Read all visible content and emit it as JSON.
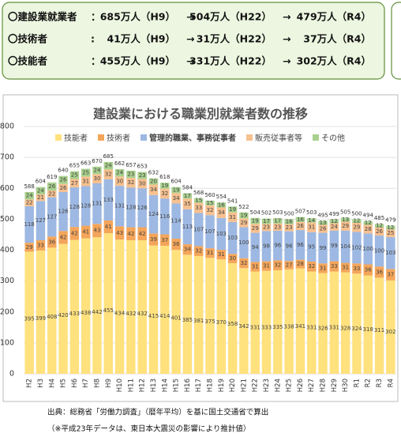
{
  "summary": {
    "rows": [
      [
        "〇建設業就業者",
        "：",
        "685万人（H9）",
        "→",
        "504万人（H22）",
        "→",
        "479万人（R4）"
      ],
      [
        "〇技術者",
        ":",
        "41万人（H9）",
        "→",
        "31万人（H22）",
        "→",
        "37万人（R4）"
      ],
      [
        "〇技能者",
        "：",
        "455万人（H9）",
        "→",
        "331万人（H22）",
        "→",
        "302万人（R4）"
      ]
    ]
  },
  "chart_data": {
    "type": "stacked-bar",
    "title": "建設業における職業別就業者数の推移",
    "categories": [
      "H2",
      "H3",
      "H4",
      "H5",
      "H6",
      "H7",
      "H8",
      "H9",
      "H10",
      "H11",
      "H12",
      "H13",
      "H14",
      "H15",
      "H16",
      "H17",
      "H18",
      "H19",
      "H20",
      "H21",
      "H22",
      "H23",
      "H24",
      "H25",
      "H26",
      "H27",
      "H28",
      "H29",
      "H30",
      "R1",
      "R2",
      "R3",
      "R4"
    ],
    "series": [
      {
        "name": "技能者",
        "color": "#ffe17d",
        "values": [
          395,
          399,
          408,
          420,
          433,
          438,
          442,
          455,
          434,
          432,
          432,
          415,
          414,
          401,
          385,
          381,
          375,
          370,
          358,
          342,
          331,
          333,
          335,
          338,
          341,
          331,
          326,
          331,
          328,
          324,
          318,
          311,
          302
        ]
      },
      {
        "name": "技術者",
        "color": "#f4a55a",
        "values": [
          29,
          33,
          36,
          42,
          42,
          41,
          43,
          41,
          43,
          42,
          42,
          39,
          37,
          36,
          34,
          32,
          31,
          31,
          30,
          32,
          31,
          31,
          32,
          27,
          28,
          32,
          31,
          33,
          31,
          33,
          36,
          36,
          37
        ]
      },
      {
        "name": "管理的職業、事務従事者",
        "color": "#9db8e2",
        "values": [
          118,
          127,
          127,
          126,
          128,
          128,
          131,
          133,
          131,
          128,
          126,
          124,
          116,
          114,
          113,
          107,
          107,
          103,
          103,
          100,
          94,
          98,
          96,
          96,
          96,
          95,
          99,
          99,
          104,
          102,
          100,
          100,
          103
        ]
      },
      {
        "name": "販売従事者等",
        "color": "#f6c08f",
        "values": [
          22,
          21,
          22,
          26,
          27,
          31,
          30,
          32,
          30,
          32,
          30,
          34,
          32,
          34,
          35,
          33,
          32,
          34,
          31,
          29,
          29,
          23,
          23,
          23,
          26,
          31,
          26,
          24,
          29,
          29,
          28,
          26,
          25
        ]
      },
      {
        "name": "その他",
        "color": "#a9d18e",
        "values": [
          24,
          24,
          26,
          26,
          25,
          25,
          24,
          24,
          24,
          23,
          23,
          20,
          19,
          19,
          17,
          15,
          15,
          16,
          19,
          19,
          19,
          17,
          17,
          16,
          16,
          14,
          13,
          12,
          13,
          12,
          12,
          12,
          12
        ]
      }
    ],
    "totals": [
      588,
      604,
      619,
      640,
      655,
      663,
      670,
      685,
      662,
      657,
      653,
      632,
      618,
      604,
      584,
      568,
      560,
      554,
      541,
      522,
      504,
      502,
      503,
      500,
      507,
      503,
      495,
      499,
      505,
      500,
      494,
      485,
      479
    ],
    "ylim": [
      0,
      800
    ],
    "yticks": [
      0,
      100,
      200,
      300,
      400,
      500,
      600,
      700,
      800
    ],
    "grid": true,
    "notes": [
      "出典：総務省「労働力調査」（暦年平均）を基に国土交通省で算出",
      "（※平成23年データは、東日本大震災の影響により推計値）"
    ]
  }
}
